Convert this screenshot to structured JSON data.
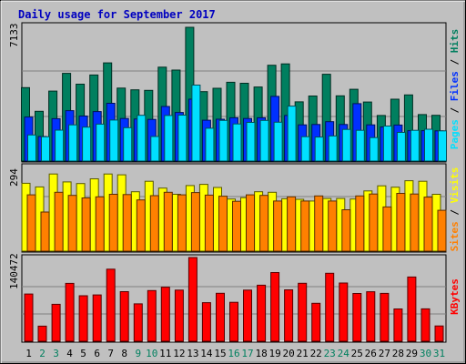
{
  "chart_data": {
    "type": "bar",
    "title": "Daily usage for September 2017",
    "categories": [
      "1",
      "2",
      "3",
      "4",
      "5",
      "6",
      "7",
      "8",
      "9",
      "10",
      "11",
      "12",
      "13",
      "14",
      "15",
      "16",
      "17",
      "18",
      "19",
      "20",
      "21",
      "22",
      "23",
      "24",
      "25",
      "26",
      "27",
      "28",
      "29",
      "30",
      "31"
    ],
    "weekend_days": [
      "2",
      "3",
      "9",
      "10",
      "16",
      "17",
      "23",
      "24",
      "30",
      "31"
    ],
    "panels": [
      {
        "name": "top",
        "max_label": "7133",
        "ymax": 7133,
        "legend": [
          "Pages",
          "Files",
          "Hits"
        ],
        "series": [
          {
            "name": "Hits",
            "color": "#007f5f",
            "values": [
              3915,
              2656,
              3730,
              4680,
              4100,
              4589,
              5234,
              3890,
              3800,
              3770,
              5010,
              4850,
              7133,
              3700,
              3880,
              4200,
              4150,
              3950,
              5110,
              5180,
              3160,
              3470,
              4630,
              3480,
              3830,
              3150,
              2430,
              3300,
              3530,
              2480,
              2440
            ]
          },
          {
            "name": "Files",
            "color": "#0030ff",
            "values": [
              2350,
              1310,
              2260,
              2690,
              2400,
              2640,
              3080,
              2270,
              2240,
              2220,
              2910,
              2590,
              3300,
              2180,
              2230,
              2310,
              2270,
              2310,
              3450,
              2430,
              1930,
              1950,
              2100,
              1950,
              3060,
              1930,
              1820,
              1920,
              1620,
              1620,
              1610
            ]
          },
          {
            "name": "Pages",
            "color": "#00e0ff",
            "values": [
              1392,
              1294,
              1650,
              1930,
              1810,
              1970,
              2190,
              1780,
              2440,
              1310,
              2430,
              2450,
              4050,
              1750,
              2170,
              1980,
              2060,
              2170,
              2070,
              2930,
              1300,
              1280,
              1340,
              1690,
              1640,
              1250,
              1870,
              1530,
              1640,
              1700,
              1610
            ]
          }
        ]
      },
      {
        "name": "middle",
        "max_label": "294",
        "ymax": 294,
        "legend": [
          "Sites",
          "Visits"
        ],
        "series": [
          {
            "name": "Visits",
            "color": "#ffff00",
            "values": [
              241,
              228,
              274,
              246,
              240,
              257,
              274,
              271,
              211,
              248,
              224,
              202,
              233,
              237,
              226,
              185,
              190,
              211,
              209,
              186,
              184,
              178,
              187,
              187,
              185,
              214,
              232,
              227,
              250,
              248,
              202
            ]
          },
          {
            "name": "Sites",
            "color": "#ff8000",
            "values": [
              200,
              139,
              209,
              198,
              189,
              193,
              202,
              201,
              182,
              197,
              209,
              200,
              208,
              199,
              195,
              177,
              200,
              198,
              178,
              193,
              178,
              196,
              178,
              147,
              196,
              203,
              157,
              205,
              203,
              192,
              145
            ]
          }
        ]
      },
      {
        "name": "bottom",
        "max_label": "140472",
        "ymax": 140472,
        "legend": [
          "KBytes"
        ],
        "series": [
          {
            "name": "KBytes",
            "color": "#ff0000",
            "values": [
              79300,
              25300,
              62000,
              97100,
              76400,
              77700,
              121000,
              83200,
              62700,
              85000,
              90700,
              85800,
              140472,
              64800,
              80400,
              65300,
              85800,
              94100,
              115300,
              86200,
              97300,
              63700,
              114000,
              97700,
              80100,
              83000,
              80300,
              54200,
              107800,
              54400,
              25600
            ]
          }
        ]
      }
    ]
  }
}
